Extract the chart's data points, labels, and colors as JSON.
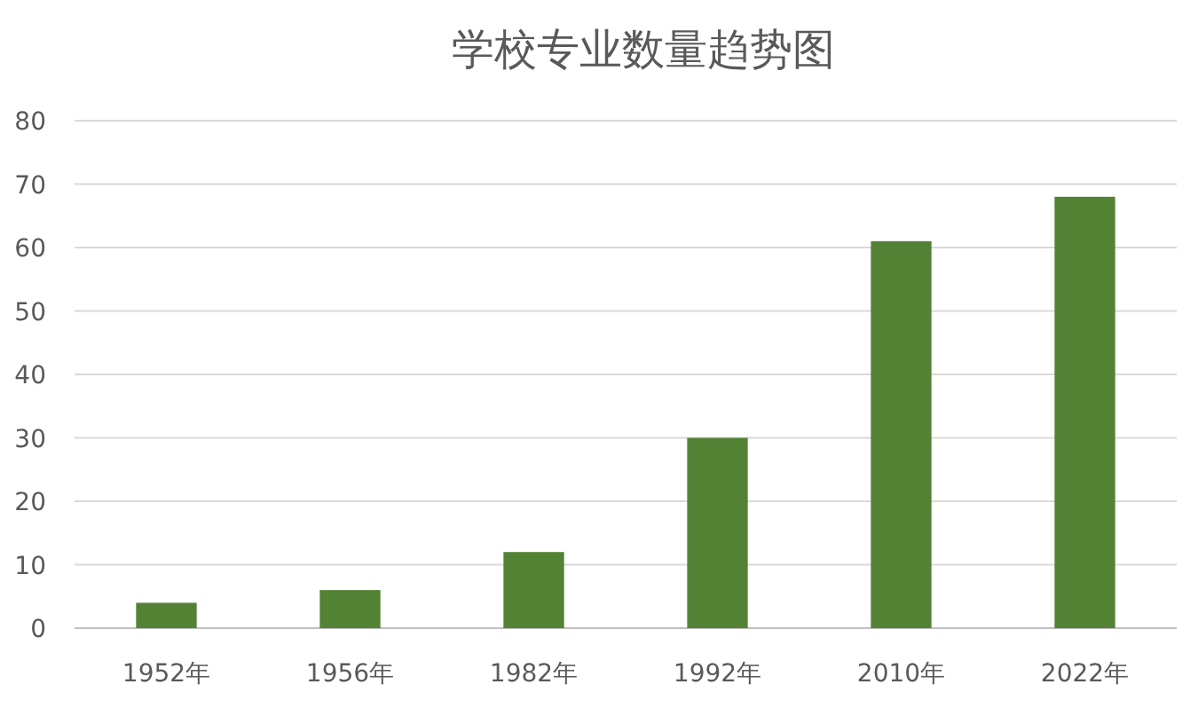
{
  "chart_data": {
    "type": "bar",
    "title": "学校专业数量趋势图",
    "categories": [
      "1952年",
      "1956年",
      "1982年",
      "1992年",
      "2010年",
      "2022年"
    ],
    "values": [
      4,
      6,
      12,
      30,
      61,
      68
    ],
    "color": "#548235",
    "ylim": [
      0,
      80
    ],
    "yticks": [
      0,
      10,
      20,
      30,
      40,
      50,
      60,
      70,
      80
    ],
    "grid": "y"
  }
}
